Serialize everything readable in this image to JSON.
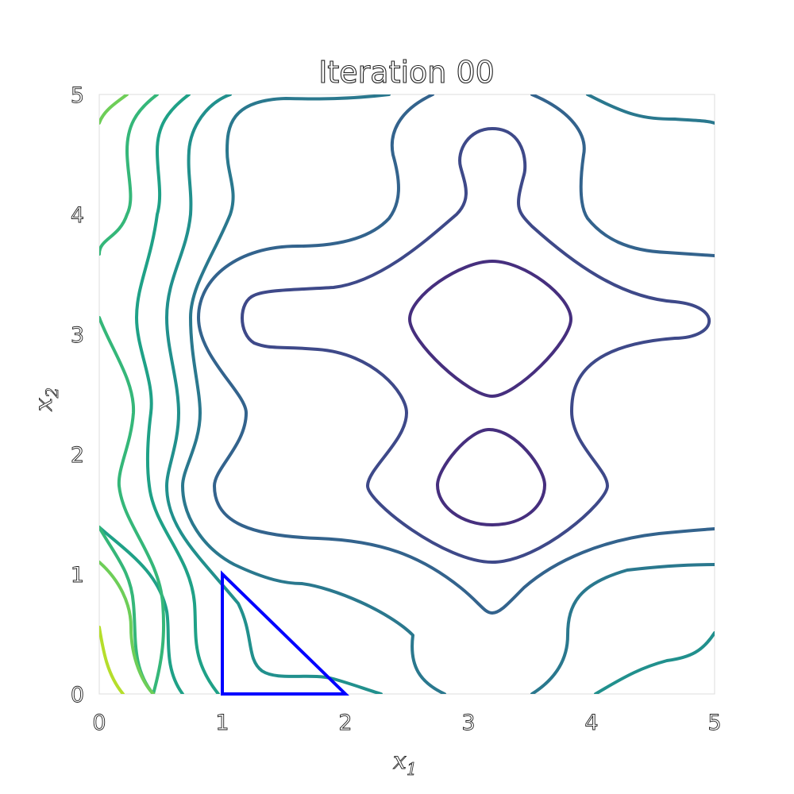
{
  "chart_data": {
    "type": "contour",
    "title": "Iteration 00",
    "xlabel": "x",
    "xlabel_sub": "1",
    "ylabel": "x",
    "ylabel_sub": "2",
    "xlim": [
      0,
      5
    ],
    "ylim": [
      0,
      5
    ],
    "xticks": [
      "0",
      "1",
      "2",
      "3",
      "4",
      "5"
    ],
    "yticks": [
      "0",
      "1",
      "2",
      "3",
      "4",
      "5"
    ],
    "grid": false,
    "colormap": "viridis",
    "contour_colors": [
      "#462f7e",
      "#3e4989",
      "#33638d",
      "#2a788e",
      "#21908d",
      "#1fa187",
      "#35b779",
      "#6ece58",
      "#b5de2b"
    ],
    "simplex": {
      "color": "#0000ff",
      "vertices": [
        [
          1,
          1
        ],
        [
          1,
          0
        ],
        [
          2,
          0
        ]
      ]
    }
  }
}
